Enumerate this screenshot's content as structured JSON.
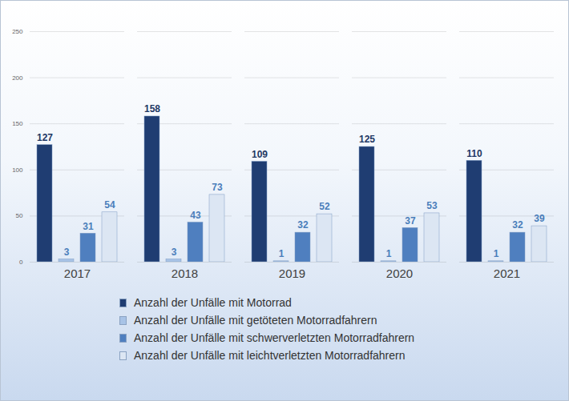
{
  "chart_data": {
    "type": "bar",
    "categories": [
      "2017",
      "2018",
      "2019",
      "2020",
      "2021"
    ],
    "series": [
      {
        "name": "Anzahl der Unfälle mit Motorrad",
        "color": "#1f3d72",
        "values": [
          127,
          158,
          109,
          125,
          110
        ]
      },
      {
        "name": "Anzahl der Unfälle mit getöteten Motorradfahrern",
        "color": "#a8c3e6",
        "values": [
          3,
          3,
          1,
          1,
          1
        ]
      },
      {
        "name": "Anzahl der Unfälle mit schwerverletzten Motorradfahrern",
        "color": "#4f7fbf",
        "values": [
          31,
          43,
          32,
          37,
          32
        ]
      },
      {
        "name": "Anzahl der Unfälle mit leichtverletzten Motorradfahrern",
        "color": "#dce6f3",
        "values": [
          54,
          73,
          52,
          53,
          39
        ]
      }
    ],
    "ylim": [
      0,
      250
    ],
    "yticks": [
      0,
      50,
      100,
      150,
      200,
      250
    ],
    "grid": true,
    "data_labels": true,
    "legend": "bottom"
  }
}
